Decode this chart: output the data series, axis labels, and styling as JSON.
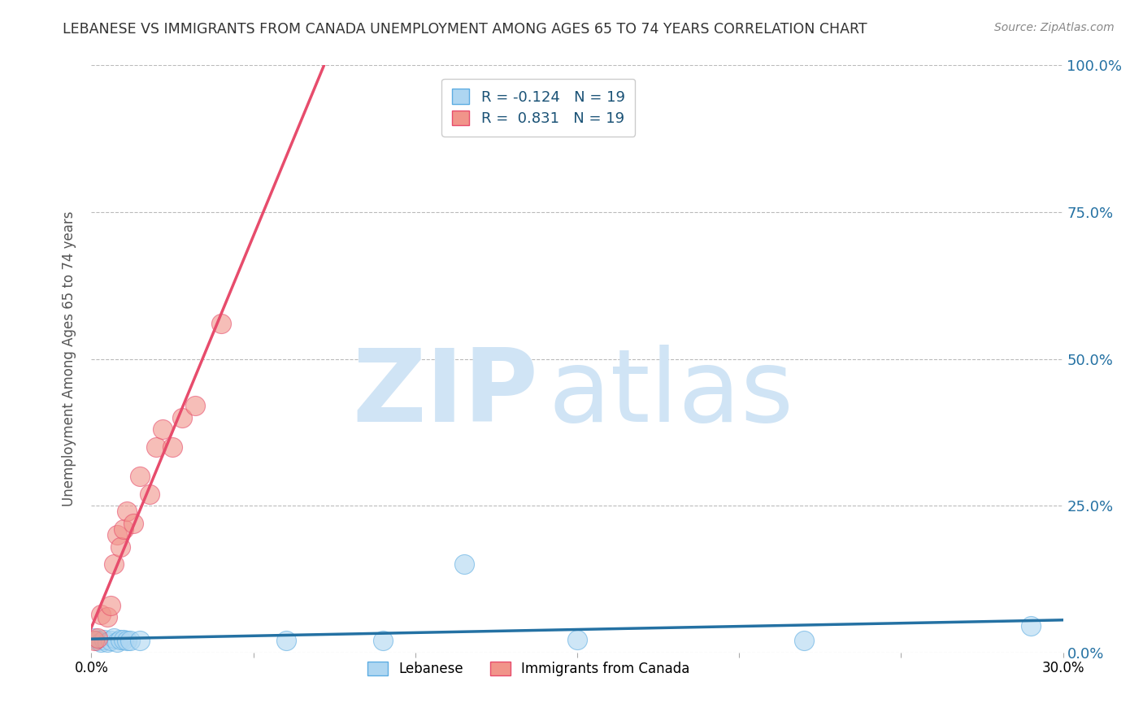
{
  "title": "LEBANESE VS IMMIGRANTS FROM CANADA UNEMPLOYMENT AMONG AGES 65 TO 74 YEARS CORRELATION CHART",
  "source": "Source: ZipAtlas.com",
  "ylabel": "Unemployment Among Ages 65 to 74 years",
  "xlim": [
    0.0,
    0.3
  ],
  "ylim": [
    0.0,
    1.0
  ],
  "R_lebanese": -0.124,
  "N_lebanese": 19,
  "R_immigrants": 0.831,
  "N_immigrants": 19,
  "lebanese_color": "#AED6F1",
  "lebanese_edge": "#5DADE2",
  "immigrants_color": "#F1948A",
  "immigrants_edge": "#E74C6C",
  "trend_lebanese_color": "#2471A3",
  "trend_immigrants_color": "#E74C6C",
  "watermark_zip": "ZIP",
  "watermark_atlas": "atlas",
  "watermark_color": "#D6EAF8",
  "background_color": "#FFFFFF",
  "grid_color": "#BBBBBB",
  "title_color": "#333333",
  "label_color": "#555555",
  "tick_color_right": "#2471A3",
  "lebanese_x": [
    0.001,
    0.002,
    0.003,
    0.004,
    0.005,
    0.006,
    0.007,
    0.008,
    0.009,
    0.01,
    0.011,
    0.012,
    0.015,
    0.06,
    0.09,
    0.115,
    0.15,
    0.22,
    0.29
  ],
  "lebanese_y": [
    0.025,
    0.02,
    0.018,
    0.022,
    0.018,
    0.02,
    0.025,
    0.018,
    0.022,
    0.022,
    0.02,
    0.02,
    0.02,
    0.02,
    0.02,
    0.15,
    0.022,
    0.02,
    0.045
  ],
  "immigrants_x": [
    0.001,
    0.002,
    0.003,
    0.005,
    0.006,
    0.007,
    0.008,
    0.009,
    0.01,
    0.011,
    0.013,
    0.015,
    0.018,
    0.02,
    0.022,
    0.025,
    0.028,
    0.032,
    0.04
  ],
  "immigrants_y": [
    0.02,
    0.025,
    0.065,
    0.06,
    0.08,
    0.15,
    0.2,
    0.18,
    0.21,
    0.24,
    0.22,
    0.3,
    0.27,
    0.35,
    0.38,
    0.35,
    0.4,
    0.42,
    0.56
  ]
}
